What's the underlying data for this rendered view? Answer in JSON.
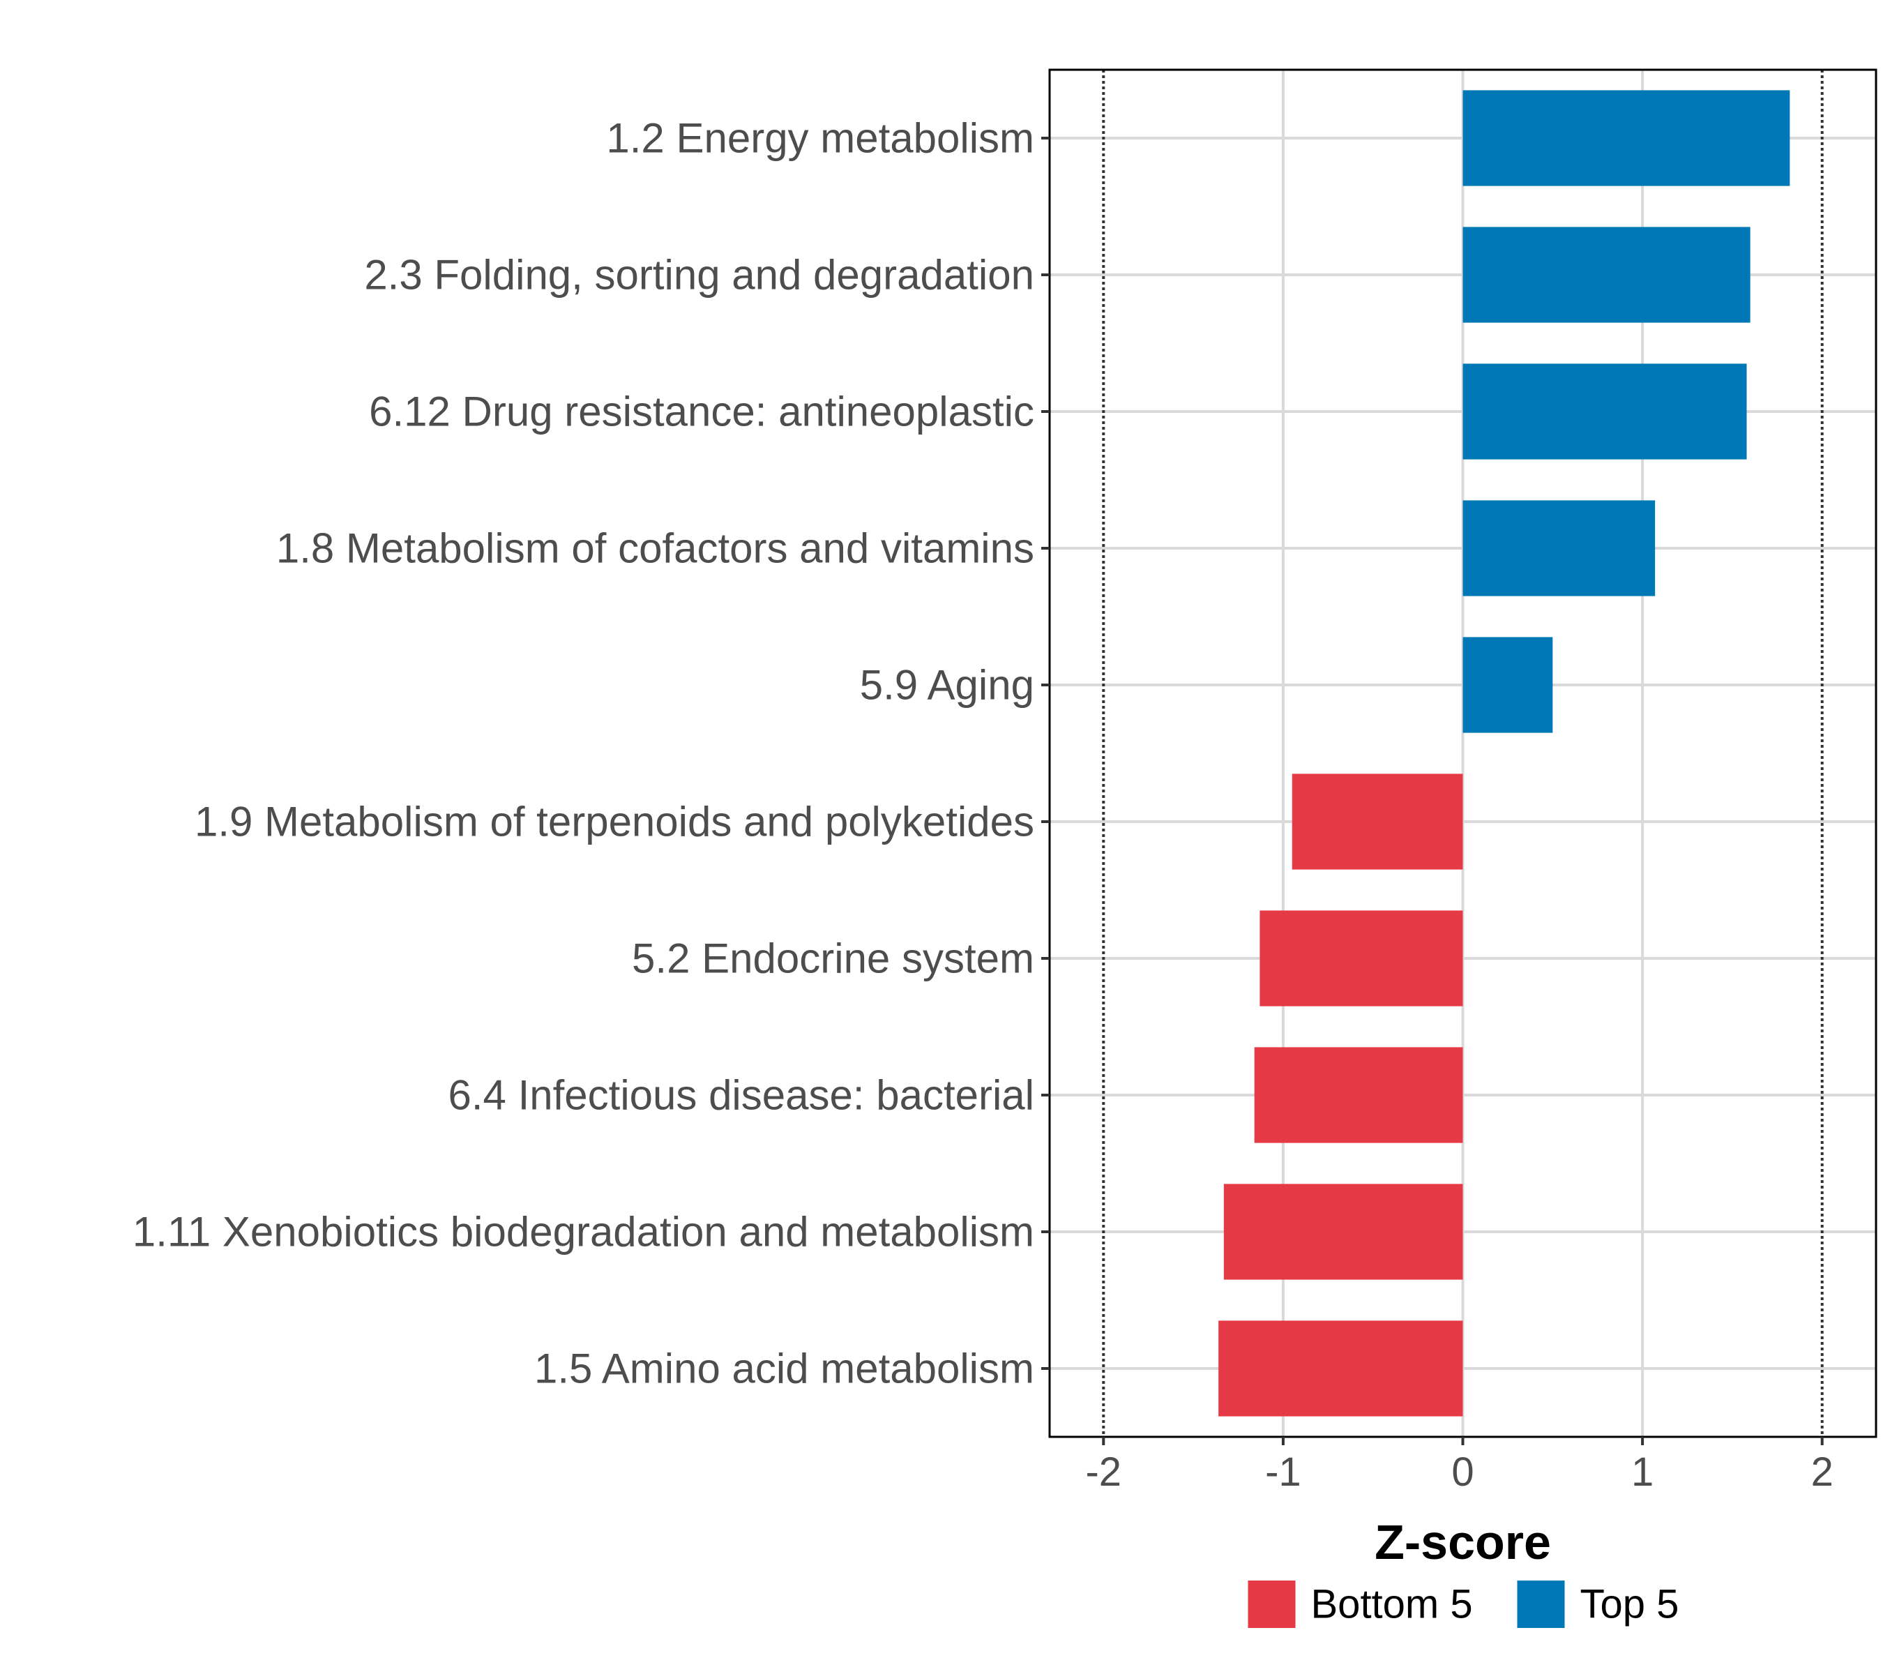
{
  "chart_data": {
    "type": "bar",
    "orientation": "horizontal",
    "title": "",
    "xlabel": "Z-score",
    "ylabel": "",
    "xlim": [
      -2.3,
      2.3
    ],
    "xticks": [
      "-2",
      "-1",
      "0",
      "1",
      "2"
    ],
    "xtick_values": [
      -2,
      -1,
      0,
      1,
      2
    ],
    "reference_lines": [
      -2,
      2
    ],
    "grid": true,
    "categories": [
      "1.2 Energy metabolism",
      "2.3 Folding, sorting and degradation",
      "6.12 Drug resistance: antineoplastic",
      "1.8 Metabolism of cofactors and vitamins",
      "5.9 Aging",
      "1.9 Metabolism of terpenoids and polyketides",
      "5.2 Endocrine system",
      "6.4 Infectious disease: bacterial",
      "1.11 Xenobiotics biodegradation and metabolism",
      "1.5 Amino acid metabolism"
    ],
    "values": [
      1.82,
      1.6,
      1.58,
      1.07,
      0.5,
      -0.95,
      -1.13,
      -1.16,
      -1.33,
      -1.36
    ],
    "groups": [
      "Top 5",
      "Top 5",
      "Top 5",
      "Top 5",
      "Top 5",
      "Bottom 5",
      "Bottom 5",
      "Bottom 5",
      "Bottom 5",
      "Bottom 5"
    ],
    "legend": [
      {
        "name": "Bottom 5",
        "color": "#E63946"
      },
      {
        "name": "Top 5",
        "color": "#0077B6"
      }
    ],
    "legend_position": "bottom"
  }
}
